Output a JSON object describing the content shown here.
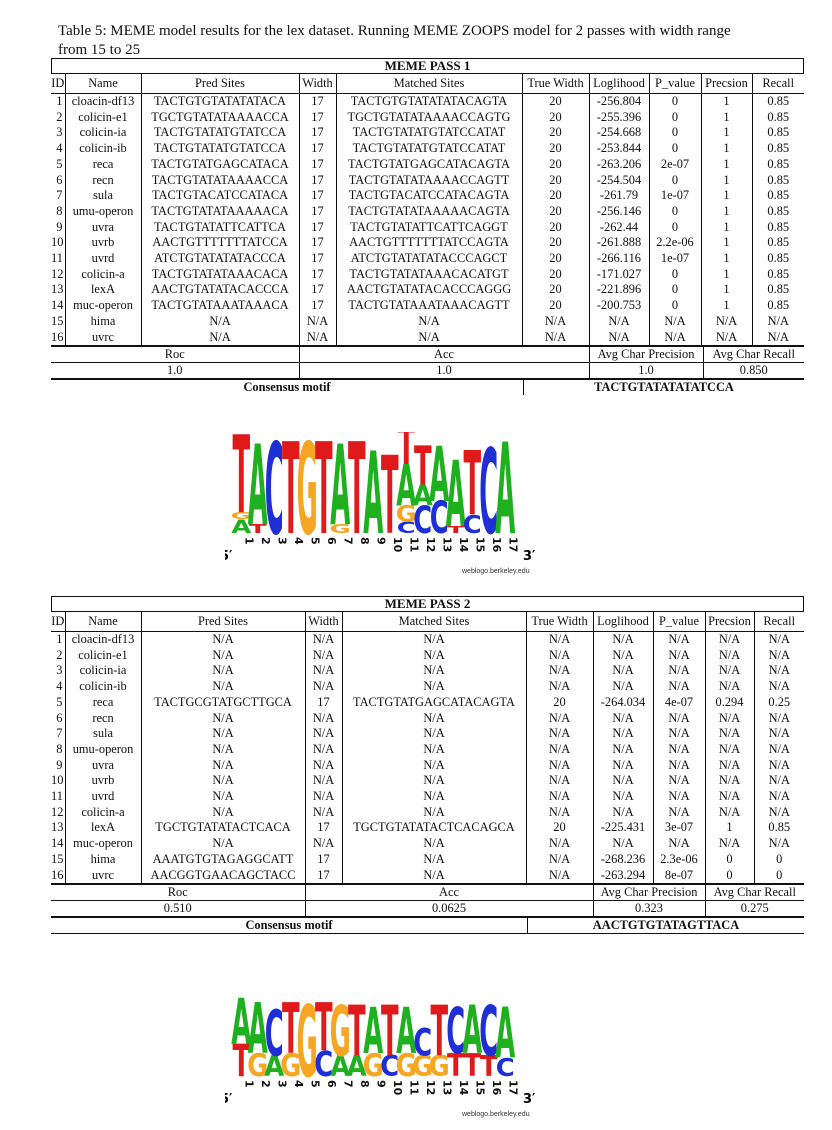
{
  "caption": "Table 5: MEME model results for the lex dataset. Running MEME ZOOPS model for 2 passes with width range from 15 to 25",
  "columns": [
    "ID",
    "Name",
    "Pred Sites",
    "Width",
    "Matched Sites",
    "True Width",
    "Loglihood",
    "P_value",
    "Precsion",
    "Recall"
  ],
  "summary_headers": [
    "Roc",
    "Acc",
    "Avg Char Precision",
    "Avg Char Recall"
  ],
  "consensus_label": "Consensus motif",
  "logo_credit": "weblogo.berkeley.edu",
  "logo_five_prime": "5′",
  "logo_three_prime": "3′",
  "logo_positions": [
    "1",
    "2",
    "3",
    "4",
    "5",
    "6",
    "7",
    "8",
    "9",
    "10",
    "11",
    "12",
    "13",
    "14",
    "15",
    "16",
    "17"
  ],
  "colors": {
    "A": "#1fb01f",
    "C": "#1f2fd6",
    "G": "#f5a623",
    "T": "#e01a1a"
  },
  "pass1": {
    "title": "MEME PASS 1",
    "rows": [
      [
        "1",
        "cloacin-df13",
        "TACTGTGTATATATACA",
        "17",
        "TACTGTGTATATATACAGTA",
        "20",
        "-256.804",
        "0",
        "1",
        "0.85"
      ],
      [
        "2",
        "colicin-e1",
        "TGCTGTATATAAAACCA",
        "17",
        "TGCTGTATATAAAACCAGTG",
        "20",
        "-255.396",
        "0",
        "1",
        "0.85"
      ],
      [
        "3",
        "colicin-ia",
        "TACTGTATATGTATCCA",
        "17",
        "TACTGTATATGTATCCATAT",
        "20",
        "-254.668",
        "0",
        "1",
        "0.85"
      ],
      [
        "4",
        "colicin-ib",
        "TACTGTATATGTATCCA",
        "17",
        "TACTGTATATGTATCCATAT",
        "20",
        "-253.844",
        "0",
        "1",
        "0.85"
      ],
      [
        "5",
        "reca",
        "TACTGTATGAGCATACA",
        "17",
        "TACTGTATGAGCATACAGTA",
        "20",
        "-263.206",
        "2e-07",
        "1",
        "0.85"
      ],
      [
        "6",
        "recn",
        "TACTGTATATAAAACCA",
        "17",
        "TACTGTATATAAAACCAGTT",
        "20",
        "-254.504",
        "0",
        "1",
        "0.85"
      ],
      [
        "7",
        "sula",
        "TACTGTACATCCATACA",
        "17",
        "TACTGTACATCCATACAGTA",
        "20",
        "-261.79",
        "1e-07",
        "1",
        "0.85"
      ],
      [
        "8",
        "umu-operon",
        "TACTGTATATAAAAACA",
        "17",
        "TACTGTATATAAAAACAGTA",
        "20",
        "-256.146",
        "0",
        "1",
        "0.85"
      ],
      [
        "9",
        "uvra",
        "TACTGTATATTCATTCA",
        "17",
        "TACTGTATATTCATTCAGGT",
        "20",
        "-262.44",
        "0",
        "1",
        "0.85"
      ],
      [
        "10",
        "uvrb",
        "AACTGTTTTTTTATCCA",
        "17",
        "AACTGTTTTTTTATCCAGTA",
        "20",
        "-261.888",
        "2.2e-06",
        "1",
        "0.85"
      ],
      [
        "11",
        "uvrd",
        "ATCTGTATATATACCCA",
        "17",
        "ATCTGTATATATACCCAGCT",
        "20",
        "-266.116",
        "1e-07",
        "1",
        "0.85"
      ],
      [
        "12",
        "colicin-a",
        "TACTGTATATAAACACA",
        "17",
        "TACTGTATATAAACACATGT",
        "20",
        "-171.027",
        "0",
        "1",
        "0.85"
      ],
      [
        "13",
        "lexA",
        "AACTGTATATACACCCA",
        "17",
        "AACTGTATATACACCCAGGG",
        "20",
        "-221.896",
        "0",
        "1",
        "0.85"
      ],
      [
        "14",
        "muc-operon",
        "TACTGTATAAATAAACA",
        "17",
        "TACTGTATAAATAAACAGTT",
        "20",
        "-200.753",
        "0",
        "1",
        "0.85"
      ],
      [
        "15",
        "hima",
        "N/A",
        "N/A",
        "N/A",
        "N/A",
        "N/A",
        "N/A",
        "N/A",
        "N/A"
      ],
      [
        "16",
        "uvrc",
        "N/A",
        "N/A",
        "N/A",
        "N/A",
        "N/A",
        "N/A",
        "N/A",
        "N/A"
      ]
    ],
    "summary_values": [
      "1.0",
      "1.0",
      "1.0",
      "0.850"
    ],
    "consensus": "TACTGTATATATATCCA",
    "logo": [
      [
        [
          "A",
          0.3
        ],
        [
          "G",
          0.15
        ],
        [
          "T",
          1.7
        ]
      ],
      [
        [
          "T",
          0.2
        ],
        [
          "A",
          1.75
        ]
      ],
      [
        [
          "C",
          2.0
        ]
      ],
      [
        [
          "T",
          2.0
        ]
      ],
      [
        [
          "G",
          2.0
        ]
      ],
      [
        [
          "T",
          2.0
        ]
      ],
      [
        [
          "G",
          0.2
        ],
        [
          "A",
          1.75
        ]
      ],
      [
        [
          "T",
          2.0
        ]
      ],
      [
        [
          "A",
          1.8
        ]
      ],
      [
        [
          "T",
          1.7
        ]
      ],
      [
        [
          "C",
          0.25
        ],
        [
          "G",
          0.35
        ],
        [
          "A",
          0.9
        ],
        [
          "T",
          0.85
        ]
      ],
      [
        [
          "C",
          0.6
        ],
        [
          "A",
          0.45
        ],
        [
          "T",
          0.85
        ]
      ],
      [
        [
          "C",
          0.7
        ],
        [
          "A",
          1.2
        ]
      ],
      [
        [
          "T",
          0.15
        ],
        [
          "A",
          1.45
        ]
      ],
      [
        [
          "C",
          0.4
        ],
        [
          "T",
          1.4
        ]
      ],
      [
        [
          "C",
          1.85
        ]
      ],
      [
        [
          "A",
          2.0
        ]
      ]
    ]
  },
  "pass2": {
    "title": "MEME PASS 2",
    "rows": [
      [
        "1",
        "cloacin-df13",
        "N/A",
        "N/A",
        "N/A",
        "N/A",
        "N/A",
        "N/A",
        "N/A",
        "N/A"
      ],
      [
        "2",
        "colicin-e1",
        "N/A",
        "N/A",
        "N/A",
        "N/A",
        "N/A",
        "N/A",
        "N/A",
        "N/A"
      ],
      [
        "3",
        "colicin-ia",
        "N/A",
        "N/A",
        "N/A",
        "N/A",
        "N/A",
        "N/A",
        "N/A",
        "N/A"
      ],
      [
        "4",
        "colicin-ib",
        "N/A",
        "N/A",
        "N/A",
        "N/A",
        "N/A",
        "N/A",
        "N/A",
        "N/A"
      ],
      [
        "5",
        "reca",
        "TACTGCGTATGCTTGCA",
        "17",
        "TACTGTATGAGCATACAGTA",
        "20",
        "-264.034",
        "4e-07",
        "0.294",
        "0.25"
      ],
      [
        "6",
        "recn",
        "N/A",
        "N/A",
        "N/A",
        "N/A",
        "N/A",
        "N/A",
        "N/A",
        "N/A"
      ],
      [
        "7",
        "sula",
        "N/A",
        "N/A",
        "N/A",
        "N/A",
        "N/A",
        "N/A",
        "N/A",
        "N/A"
      ],
      [
        "8",
        "umu-operon",
        "N/A",
        "N/A",
        "N/A",
        "N/A",
        "N/A",
        "N/A",
        "N/A",
        "N/A"
      ],
      [
        "9",
        "uvra",
        "N/A",
        "N/A",
        "N/A",
        "N/A",
        "N/A",
        "N/A",
        "N/A",
        "N/A"
      ],
      [
        "10",
        "uvrb",
        "N/A",
        "N/A",
        "N/A",
        "N/A",
        "N/A",
        "N/A",
        "N/A",
        "N/A"
      ],
      [
        "11",
        "uvrd",
        "N/A",
        "N/A",
        "N/A",
        "N/A",
        "N/A",
        "N/A",
        "N/A",
        "N/A"
      ],
      [
        "12",
        "colicin-a",
        "N/A",
        "N/A",
        "N/A",
        "N/A",
        "N/A",
        "N/A",
        "N/A",
        "N/A"
      ],
      [
        "13",
        "lexA",
        "TGCTGTATATACTCACA",
        "17",
        "TGCTGTATATACTCACAGCA",
        "20",
        "-225.431",
        "3e-07",
        "1",
        "0.85"
      ],
      [
        "14",
        "muc-operon",
        "N/A",
        "N/A",
        "N/A",
        "N/A",
        "N/A",
        "N/A",
        "N/A",
        "N/A"
      ],
      [
        "15",
        "hima",
        "AAATGTGTAGAGGCATT",
        "17",
        "N/A",
        "N/A",
        "-268.236",
        "2.3e-06",
        "0",
        "0"
      ],
      [
        "16",
        "uvrc",
        "AACGGTGAACAGCTACC",
        "17",
        "N/A",
        "N/A",
        "-263.294",
        "8e-07",
        "0",
        "0"
      ]
    ],
    "summary_values": [
      "0.510",
      "0.0625",
      "0.323",
      "0.275"
    ],
    "consensus": "AACTGTGTATAGTTACA",
    "logo": [
      [
        [
          "T",
          0.7
        ],
        [
          "A",
          1.0
        ]
      ],
      [
        [
          "G",
          0.5
        ],
        [
          "A",
          1.1
        ]
      ],
      [
        [
          "A",
          0.45
        ],
        [
          "C",
          1.0
        ]
      ],
      [
        [
          "G",
          0.5
        ],
        [
          "T",
          1.1
        ]
      ],
      [
        [
          "G",
          1.55
        ]
      ],
      [
        [
          "C",
          0.55
        ],
        [
          "T",
          1.05
        ]
      ],
      [
        [
          "A",
          0.45
        ],
        [
          "G",
          1.1
        ]
      ],
      [
        [
          "A",
          0.45
        ],
        [
          "T",
          1.1
        ]
      ],
      [
        [
          "G",
          0.5
        ],
        [
          "A",
          1.0
        ]
      ],
      [
        [
          "C",
          0.45
        ],
        [
          "T",
          1.1
        ]
      ],
      [
        [
          "G",
          0.5
        ],
        [
          "A",
          1.0
        ]
      ],
      [
        [
          "G",
          0.45
        ],
        [
          "C",
          0.6
        ]
      ],
      [
        [
          "G",
          0.45
        ],
        [
          "T",
          1.1
        ]
      ],
      [
        [
          "T",
          0.5
        ],
        [
          "C",
          1.0
        ]
      ],
      [
        [
          "T",
          0.5
        ],
        [
          "A",
          1.05
        ]
      ],
      [
        [
          "T",
          0.45
        ],
        [
          "C",
          1.1
        ]
      ],
      [
        [
          "C",
          0.4
        ],
        [
          "A",
          1.1
        ]
      ]
    ]
  }
}
